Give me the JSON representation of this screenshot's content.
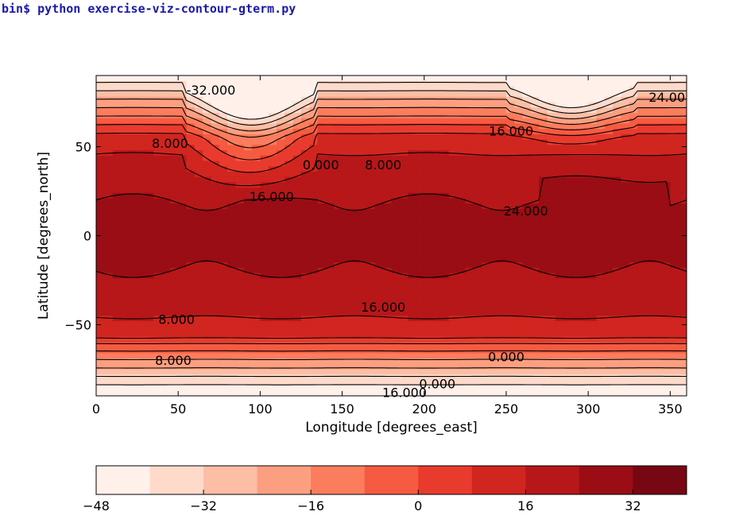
{
  "terminal": {
    "prompt": "bin$",
    "command": "python exercise-viz-contour-gterm.py"
  },
  "chart_data": {
    "type": "filled-contour",
    "xlabel": "Longitude [degrees_east]",
    "ylabel": "Latitude [degrees_north]",
    "xlim": [
      0,
      360
    ],
    "ylim": [
      -90,
      90
    ],
    "xticks": [
      0,
      50,
      100,
      150,
      200,
      250,
      300,
      350
    ],
    "xtick_labels": [
      "0",
      "50",
      "100",
      "150",
      "200",
      "250",
      "300",
      "350"
    ],
    "yticks": [
      50,
      0,
      -50
    ],
    "ytick_labels": [
      "50",
      "0",
      "−50"
    ],
    "contour_labels": [
      {
        "text": "-32.000",
        "lon": 70,
        "lat": 82
      },
      {
        "text": "24.00",
        "lon": 348,
        "lat": 78
      },
      {
        "text": "16.000",
        "lon": 253,
        "lat": 59
      },
      {
        "text": "8.000",
        "lon": 45,
        "lat": 52
      },
      {
        "text": "0.000",
        "lon": 137,
        "lat": 40
      },
      {
        "text": "8.000",
        "lon": 175,
        "lat": 40
      },
      {
        "text": "16.000",
        "lon": 107,
        "lat": 22
      },
      {
        "text": "24.000",
        "lon": 262,
        "lat": 14
      },
      {
        "text": "8.000",
        "lon": 49,
        "lat": -47
      },
      {
        "text": "16.000",
        "lon": 175,
        "lat": -40
      },
      {
        "text": "0.000",
        "lon": 250,
        "lat": -68
      },
      {
        "text": "0.000",
        "lon": 208,
        "lat": -83
      },
      {
        "text": "8.000",
        "lon": 47,
        "lat": -70
      },
      {
        "text": "16.000",
        "lon": 188,
        "lat": -88
      }
    ],
    "colorbar": {
      "boundaries": [
        -48,
        -40,
        -32,
        -24,
        -16,
        -8,
        0,
        8,
        16,
        24,
        32,
        40
      ],
      "tick_values": [
        -48,
        -32,
        -16,
        0,
        16,
        32
      ],
      "tick_labels": [
        "−48",
        "−32",
        "−16",
        "0",
        "16",
        "32"
      ],
      "colors": [
        "#fff0ea",
        "#fedacb",
        "#fcbea5",
        "#fc9f81",
        "#fb7d5e",
        "#f65b41",
        "#e83b2e",
        "#d1251f",
        "#b71719",
        "#9a0d14",
        "#770712"
      ]
    },
    "grid": false
  }
}
